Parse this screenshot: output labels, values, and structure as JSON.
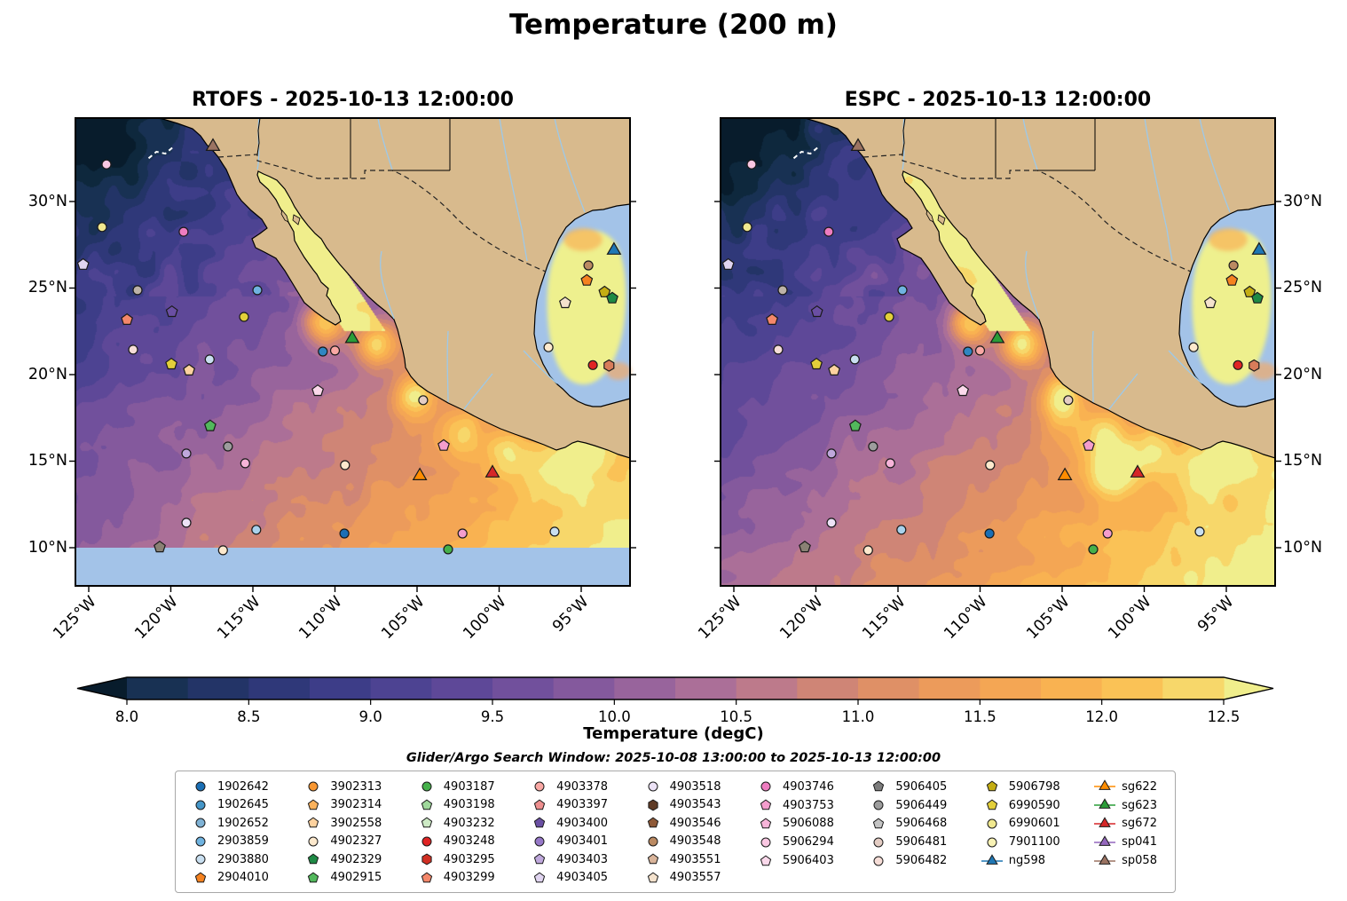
{
  "title": "Temperature (200 m)",
  "subtitle": "Glider/Argo Search Window: 2025-10-08 13:00:00 to 2025-10-13 12:00:00",
  "panels": [
    {
      "title": "RTOFS - 2025-10-13 12:00:00",
      "lat_labels_side": "left",
      "domain_cut_below_10n": true
    },
    {
      "title": "ESPC - 2025-10-13 12:00:00",
      "lat_labels_side": "right",
      "domain_cut_below_10n": false
    }
  ],
  "axes": {
    "lat_ticks": [
      {
        "label": "30°N",
        "lat": 30
      },
      {
        "label": "25°N",
        "lat": 25
      },
      {
        "label": "20°N",
        "lat": 20
      },
      {
        "label": "15°N",
        "lat": 15
      },
      {
        "label": "10°N",
        "lat": 10
      }
    ],
    "lon_ticks": [
      {
        "label": "125°W",
        "lon": -125
      },
      {
        "label": "120°W",
        "lon": -120
      },
      {
        "label": "115°W",
        "lon": -115
      },
      {
        "label": "110°W",
        "lon": -110
      },
      {
        "label": "105°W",
        "lon": -105
      },
      {
        "label": "100°W",
        "lon": -100
      },
      {
        "label": "95°W",
        "lon": -95
      }
    ]
  },
  "colorbar": {
    "label": "Temperature (degC)",
    "ticks": [
      "8.0",
      "8.5",
      "9.0",
      "9.5",
      "10.0",
      "10.5",
      "11.0",
      "11.5",
      "12.0",
      "12.5"
    ]
  },
  "map_colors": {
    "land": "#d8ba8d",
    "shelf_water": "#a3c3e8",
    "warm_pool": "#eef08e",
    "river": "#9ec9e8"
  },
  "glider_track": {
    "color": "#ffffff",
    "points": [
      [
        13.2,
        8.6
      ],
      [
        14.6,
        7.2
      ],
      [
        16.2,
        7.6
      ],
      [
        17.6,
        6.2
      ]
    ]
  },
  "map_markers": [
    {
      "shape": "circle",
      "color": "#fac7e2",
      "x": 5.6,
      "y": 9.9
    },
    {
      "shape": "triangle",
      "color": "#9b7362",
      "x": 24.8,
      "y": 6.1
    },
    {
      "shape": "circle",
      "color": "#f0e88f",
      "x": 4.8,
      "y": 23.3
    },
    {
      "shape": "circle",
      "color": "#ee7cc0",
      "x": 19.5,
      "y": 24.3
    },
    {
      "shape": "pentagon",
      "color": "#e0d4f0",
      "x": 1.4,
      "y": 31.3
    },
    {
      "shape": "circle",
      "color": "#bdb3a8",
      "x": 11.2,
      "y": 36.8
    },
    {
      "shape": "circle",
      "color": "#6fb3e0",
      "x": 32.8,
      "y": 36.8
    },
    {
      "shape": "pentagon",
      "color": "#f4876a",
      "x": 9.3,
      "y": 43.1
    },
    {
      "shape": "pentagon",
      "color": "#6a4fa3",
      "x": 17.4,
      "y": 41.4
    },
    {
      "shape": "circle",
      "color": "#e3cf3a",
      "x": 30.4,
      "y": 42.5
    },
    {
      "shape": "circle",
      "color": "#bb8a62",
      "x": 92.5,
      "y": 31.5
    },
    {
      "shape": "pentagon",
      "color": "#f58220",
      "x": 92.2,
      "y": 34.7
    },
    {
      "shape": "triangle",
      "color": "#1f77b4",
      "x": 97.1,
      "y": 28.3
    },
    {
      "shape": "pentagon",
      "color": "#c4ad13",
      "x": 95.4,
      "y": 37.2
    },
    {
      "shape": "pentagon",
      "color": "#1e8a45",
      "x": 96.8,
      "y": 38.5
    },
    {
      "shape": "pentagon",
      "color": "#f4e2cd",
      "x": 88.3,
      "y": 39.5
    },
    {
      "shape": "circle",
      "color": "#f6ddd7",
      "x": 10.4,
      "y": 49.5
    },
    {
      "shape": "pentagon",
      "color": "#e3cf3a",
      "x": 17.3,
      "y": 52.6
    },
    {
      "shape": "pentagon",
      "color": "#fdd29f",
      "x": 20.5,
      "y": 53.9
    },
    {
      "shape": "circle",
      "color": "#c9dff0",
      "x": 24.2,
      "y": 51.6
    },
    {
      "shape": "circle",
      "color": "#2f86c2",
      "x": 44.6,
      "y": 49.9
    },
    {
      "shape": "circle",
      "color": "#f9a8a4",
      "x": 46.8,
      "y": 49.7
    },
    {
      "shape": "triangle",
      "color": "#2a9d38",
      "x": 49.9,
      "y": 47.2
    },
    {
      "shape": "circle",
      "color": "#e02424",
      "x": 93.3,
      "y": 52.8
    },
    {
      "shape": "hexagon",
      "color": "#d87c5a",
      "x": 96.2,
      "y": 52.9
    },
    {
      "shape": "circle",
      "color": "#fde9cd",
      "x": 85.3,
      "y": 49.0
    },
    {
      "shape": "pentagon",
      "color": "#fbd9eb",
      "x": 43.7,
      "y": 58.3
    },
    {
      "shape": "circle",
      "color": "#e4cdc4",
      "x": 62.7,
      "y": 60.3
    },
    {
      "shape": "pentagon",
      "color": "#52b85c",
      "x": 24.3,
      "y": 65.8
    },
    {
      "shape": "circle",
      "color": "#9d9d9d",
      "x": 27.5,
      "y": 70.2
    },
    {
      "shape": "circle",
      "color": "#bfa8dc",
      "x": 20.0,
      "y": 71.7
    },
    {
      "shape": "circle",
      "color": "#f7b4d9",
      "x": 30.6,
      "y": 73.8
    },
    {
      "shape": "circle",
      "color": "#fde9cd",
      "x": 48.6,
      "y": 74.2
    },
    {
      "shape": "pentagon",
      "color": "#f49dcd",
      "x": 66.4,
      "y": 70.0
    },
    {
      "shape": "triangle",
      "color": "#ff8c00",
      "x": 62.1,
      "y": 76.5
    },
    {
      "shape": "triangle",
      "color": "#d62728",
      "x": 75.2,
      "y": 75.9
    },
    {
      "shape": "circle",
      "color": "#ece2f6",
      "x": 20.0,
      "y": 86.5
    },
    {
      "shape": "circle",
      "color": "#a9d2ec",
      "x": 32.6,
      "y": 88.0
    },
    {
      "shape": "circle",
      "color": "#1a6fb5",
      "x": 48.5,
      "y": 88.8
    },
    {
      "shape": "circle",
      "color": "#f49dcd",
      "x": 69.8,
      "y": 88.8
    },
    {
      "shape": "circle",
      "color": "#c9dff0",
      "x": 86.4,
      "y": 88.4
    },
    {
      "shape": "pentagon",
      "color": "#8a8174",
      "x": 15.2,
      "y": 91.7
    },
    {
      "shape": "circle",
      "color": "#fde9cd",
      "x": 26.6,
      "y": 92.4
    },
    {
      "shape": "circle",
      "color": "#45b04a",
      "x": 67.2,
      "y": 92.2
    }
  ],
  "legend": {
    "columns": [
      [
        {
          "id": "1902642",
          "shape": "circle",
          "color": "#1a6fb5"
        },
        {
          "id": "1902645",
          "shape": "circle",
          "color": "#4596c8"
        },
        {
          "id": "1902652",
          "shape": "circle",
          "color": "#7fb2d5"
        },
        {
          "id": "2903859",
          "shape": "circle",
          "color": "#6fb3e0"
        },
        {
          "id": "2903880",
          "shape": "circle",
          "color": "#c9dff0"
        },
        {
          "id": "2904010",
          "shape": "pentagon",
          "color": "#f58220"
        }
      ],
      [
        {
          "id": "3902313",
          "shape": "circle",
          "color": "#f99732"
        },
        {
          "id": "3902314",
          "shape": "pentagon",
          "color": "#fbb25c"
        },
        {
          "id": "3902558",
          "shape": "pentagon",
          "color": "#fdd29f"
        },
        {
          "id": "4902327",
          "shape": "circle",
          "color": "#fde9cd"
        },
        {
          "id": "4902329",
          "shape": "pentagon",
          "color": "#1e8a45"
        },
        {
          "id": "4902915",
          "shape": "pentagon",
          "color": "#52b85c"
        }
      ],
      [
        {
          "id": "4903187",
          "shape": "circle",
          "color": "#45b04a"
        },
        {
          "id": "4903198",
          "shape": "pentagon",
          "color": "#9fd89b"
        },
        {
          "id": "4903232",
          "shape": "pentagon",
          "color": "#cdeac5"
        },
        {
          "id": "4903248",
          "shape": "circle",
          "color": "#e02424"
        },
        {
          "id": "4903295",
          "shape": "hexagon",
          "color": "#d12f23"
        },
        {
          "id": "4903299",
          "shape": "pentagon",
          "color": "#f4876a"
        }
      ],
      [
        {
          "id": "4903378",
          "shape": "circle",
          "color": "#f9a8a4"
        },
        {
          "id": "4903397",
          "shape": "pentagon",
          "color": "#ee8f8f"
        },
        {
          "id": "4903400",
          "shape": "pentagon",
          "color": "#6a4fa3"
        },
        {
          "id": "4903401",
          "shape": "circle",
          "color": "#9678c8"
        },
        {
          "id": "4903403",
          "shape": "pentagon",
          "color": "#bfa8dc"
        },
        {
          "id": "4903405",
          "shape": "pentagon",
          "color": "#e0d4f0"
        }
      ],
      [
        {
          "id": "4903518",
          "shape": "circle",
          "color": "#ece2f6"
        },
        {
          "id": "4903543",
          "shape": "hexagon",
          "color": "#5f3b26"
        },
        {
          "id": "4903546",
          "shape": "pentagon",
          "color": "#8f5a38"
        },
        {
          "id": "4903548",
          "shape": "circle",
          "color": "#bb8a62"
        },
        {
          "id": "4903551",
          "shape": "pentagon",
          "color": "#d9b49a"
        },
        {
          "id": "4903557",
          "shape": "pentagon",
          "color": "#f4e2cd"
        }
      ],
      [
        {
          "id": "4903746",
          "shape": "circle",
          "color": "#ee7cc0"
        },
        {
          "id": "4903753",
          "shape": "pentagon",
          "color": "#f49dcd"
        },
        {
          "id": "5906088",
          "shape": "pentagon",
          "color": "#f7b4d9"
        },
        {
          "id": "5906294",
          "shape": "circle",
          "color": "#fac7e2"
        },
        {
          "id": "5906403",
          "shape": "pentagon",
          "color": "#fbd9eb"
        }
      ],
      [
        {
          "id": "5906405",
          "shape": "pentagon",
          "color": "#7d7d7d"
        },
        {
          "id": "5906449",
          "shape": "circle",
          "color": "#9d9d9d"
        },
        {
          "id": "5906468",
          "shape": "pentagon",
          "color": "#c4c4c4"
        },
        {
          "id": "5906481",
          "shape": "circle",
          "color": "#e4cdc4"
        },
        {
          "id": "5906482",
          "shape": "circle",
          "color": "#f6ddd7"
        }
      ],
      [
        {
          "id": "5906798",
          "shape": "pentagon",
          "color": "#c4ad13"
        },
        {
          "id": "6990590",
          "shape": "pentagon",
          "color": "#e3cf3a"
        },
        {
          "id": "6990601",
          "shape": "circle",
          "color": "#f0e88f"
        },
        {
          "id": "7901100",
          "shape": "circle",
          "color": "#f8f2b5"
        },
        {
          "id": "ng598",
          "shape": "triangle",
          "color": "#1f77b4",
          "line": true
        }
      ],
      [
        {
          "id": "sg622",
          "shape": "triangle",
          "color": "#ff8c00",
          "line": true
        },
        {
          "id": "sg623",
          "shape": "triangle",
          "color": "#2a9d38",
          "line": true
        },
        {
          "id": "sg672",
          "shape": "triangle",
          "color": "#d62728",
          "line": true
        },
        {
          "id": "sp041",
          "shape": "triangle",
          "color": "#9467bd",
          "line": true
        },
        {
          "id": "sp058",
          "shape": "triangle",
          "color": "#9b7362",
          "line": true
        }
      ]
    ]
  },
  "chart_data": {
    "type": "heatmap",
    "title": "Temperature (200 m)",
    "subplots": [
      {
        "title": "RTOFS - 2025-10-13 12:00:00",
        "model": "RTOFS"
      },
      {
        "title": "ESPC - 2025-10-13 12:00:00",
        "model": "ESPC"
      }
    ],
    "variable": "Temperature (degC)",
    "depth_m": 200,
    "colorbar": {
      "label": "Temperature (degC)",
      "ticks": [
        8.0,
        8.5,
        9.0,
        9.5,
        10.0,
        10.5,
        11.0,
        11.5,
        12.0,
        12.5
      ],
      "range": [
        8.0,
        12.5
      ],
      "band_step": 0.25,
      "extend": "both"
    },
    "x_axis": {
      "tick_labels": [
        "125°W",
        "120°W",
        "115°W",
        "110°W",
        "105°W",
        "100°W",
        "95°W"
      ]
    },
    "y_axis": {
      "tick_labels": [
        "30°N",
        "25°N",
        "20°N",
        "15°N",
        "10°N"
      ]
    },
    "extent": {
      "lon": [
        -125.8,
        -92.0
      ],
      "lat": [
        7.8,
        34.8
      ]
    },
    "annotation": "Glider/Argo Search Window: 2025-10-08 13:00:00 to 2025-10-13 12:00:00",
    "pattern_notes": "Cold (~8 degC) water NW corner grading to warm (~12.5 degC) south and along Mexican coast; Gulf of California and central Gulf of Mexico warm (>12.5); RTOFS domain ends at 10N (no-data strip)"
  }
}
